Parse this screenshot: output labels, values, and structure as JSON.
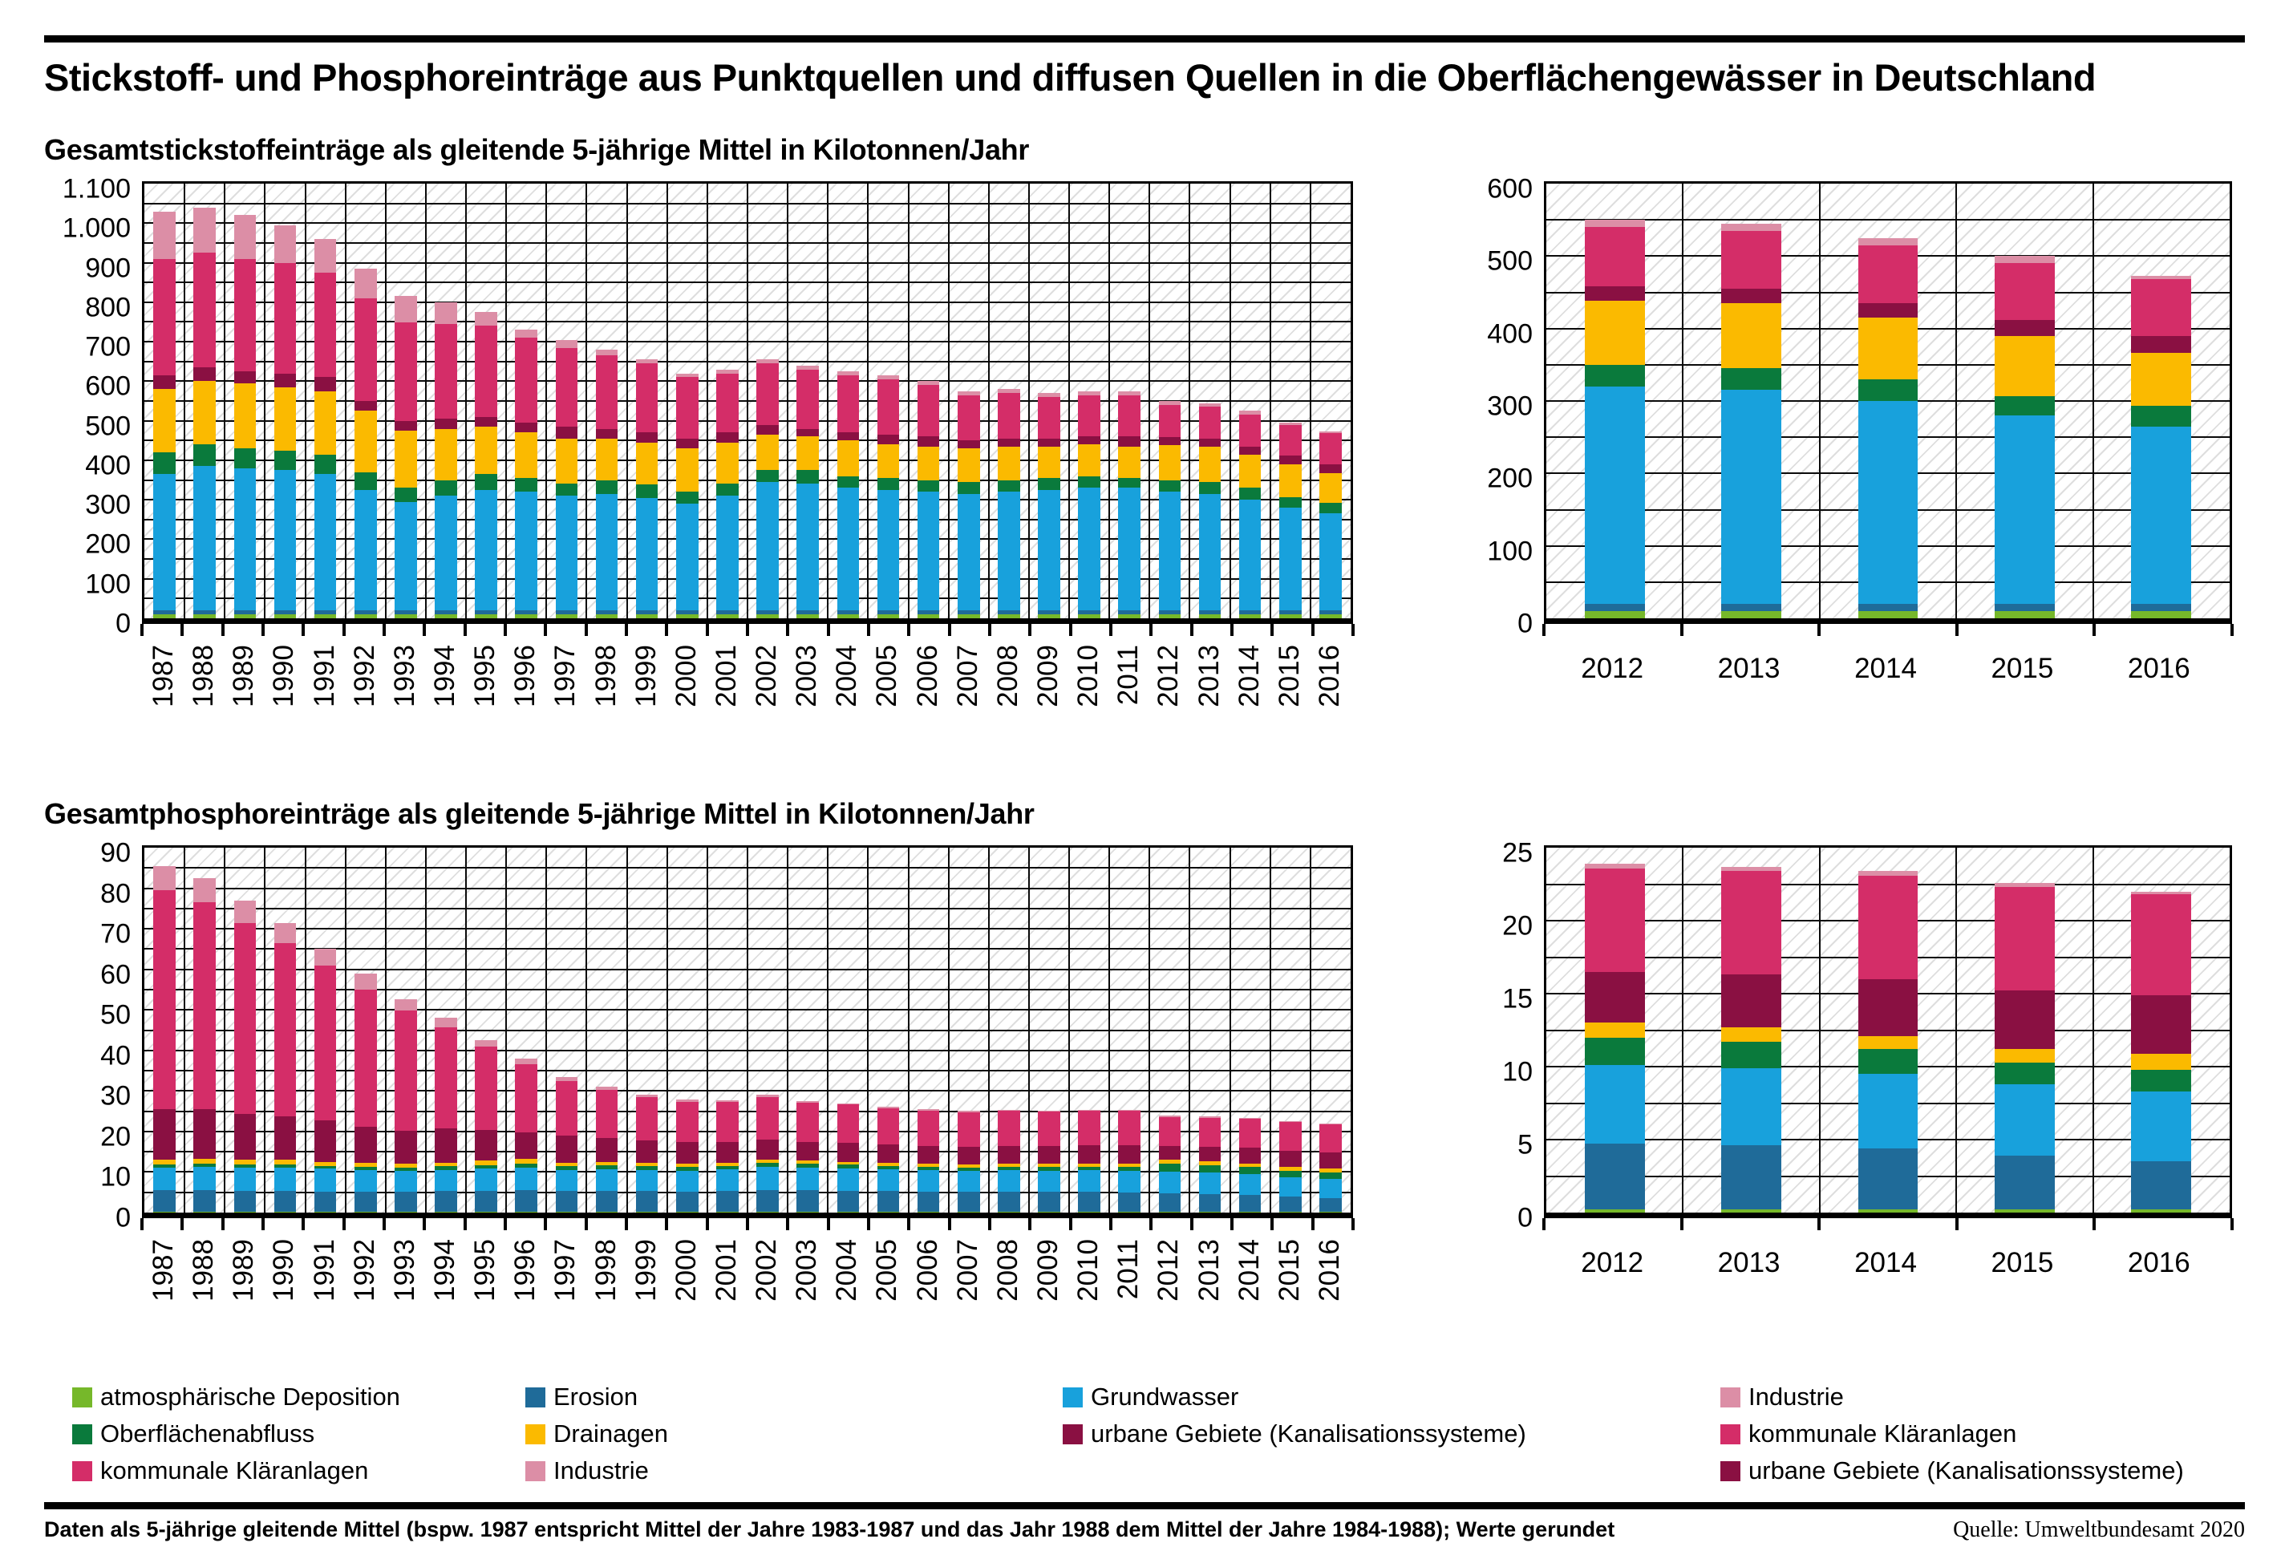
{
  "page": {
    "title": "Stickstoff- und Phosphoreinträge aus Punktquellen und diffusen Quellen in die Oberflächengewässer in Deutschland",
    "section1_title": "Gesamtstickstoffeinträge als gleitende 5-jährige Mittel in Kilotonnen/Jahr",
    "section2_title": "Gesamtphosphoreinträge als gleitende 5-jährige Mittel in Kilotonnen/Jahr",
    "footnote": "Daten als 5-jährige gleitende Mittel (bspw. 1987 entspricht Mittel der Jahre 1983-1987 und das Jahr 1988 dem Mittel der Jahre 1984-1988); Werte gerundet",
    "source": "Quelle: Umweltbundesamt 2020"
  },
  "colors": {
    "atmosphaerische_deposition": "#76b82a",
    "erosion": "#1f6b99",
    "grundwasser": "#18a1dc",
    "oberflaechenabfluss": "#0a7a3c",
    "drainagen": "#fbba00",
    "urbane_gebiete": "#8a1042",
    "kommunale_klaeranlagen": "#d42d68",
    "industrie": "#dc8ea6"
  },
  "legend": {
    "columns": [
      [
        {
          "label": "atmosphärische Deposition",
          "color": "atmosphaerische_deposition"
        },
        {
          "label": "Oberflächenabfluss",
          "color": "oberflaechenabfluss"
        },
        {
          "label": "kommunale Kläranlagen",
          "color": "kommunale_klaeranlagen"
        }
      ],
      [
        {
          "label": "Erosion",
          "color": "erosion"
        },
        {
          "label": "Drainagen",
          "color": "drainagen"
        },
        {
          "label": "Industrie",
          "color": "industrie"
        }
      ],
      [
        {
          "label": "Grundwasser",
          "color": "grundwasser"
        },
        {
          "label": "urbane Gebiete (Kanalisationssysteme)",
          "color": "urbane_gebiete"
        }
      ],
      [
        {
          "label": "Industrie",
          "color": "industrie"
        },
        {
          "label": "kommunale Kläranlagen",
          "color": "kommunale_klaeranlagen"
        },
        {
          "label": "urbane Gebiete (Kanalisationssysteme)",
          "color": "urbane_gebiete"
        }
      ]
    ]
  },
  "chart_data": [
    {
      "id": "nitrogen-main",
      "type": "bar",
      "stacked": true,
      "title": "Gesamtstickstoffeinträge als gleitende 5-jährige Mittel in Kilotonnen/Jahr",
      "ylabel": "Kilotonnen/Jahr",
      "ylim": [
        0,
        1100
      ],
      "ytick_step": 100,
      "minor_step": 50,
      "ytick_labels": [
        "0",
        "100",
        "200",
        "300",
        "400",
        "500",
        "600",
        "700",
        "800",
        "900",
        "1.000",
        "1.100"
      ],
      "rotate_x_labels": true,
      "bar_width_frac": 0.55,
      "categories": [
        "1987",
        "1988",
        "1989",
        "1990",
        "1991",
        "1992",
        "1993",
        "1994",
        "1995",
        "1996",
        "1997",
        "1998",
        "1999",
        "2000",
        "2001",
        "2002",
        "2003",
        "2004",
        "2005",
        "2006",
        "2007",
        "2008",
        "2009",
        "2010",
        "2011",
        "2012",
        "2013",
        "2014",
        "2015",
        "2016"
      ],
      "series": [
        {
          "name": "atmosphärische Deposition",
          "color": "atmosphaerische_deposition",
          "values": [
            10,
            10,
            10,
            10,
            10,
            10,
            10,
            10,
            10,
            10,
            10,
            10,
            10,
            10,
            10,
            10,
            10,
            10,
            10,
            10,
            10,
            10,
            10,
            10,
            10,
            10,
            10,
            10,
            10,
            10
          ]
        },
        {
          "name": "Erosion",
          "color": "erosion",
          "values": [
            10,
            10,
            10,
            10,
            10,
            10,
            10,
            10,
            10,
            10,
            10,
            10,
            10,
            10,
            10,
            10,
            10,
            10,
            10,
            10,
            10,
            10,
            10,
            10,
            10,
            10,
            10,
            10,
            10,
            10
          ]
        },
        {
          "name": "Grundwasser",
          "color": "grundwasser",
          "values": [
            345,
            365,
            360,
            355,
            345,
            305,
            275,
            290,
            305,
            300,
            290,
            295,
            285,
            270,
            290,
            325,
            320,
            310,
            305,
            300,
            295,
            300,
            305,
            310,
            310,
            300,
            295,
            280,
            260,
            245
          ]
        },
        {
          "name": "Oberflächenabfluss",
          "color": "oberflaechenabfluss",
          "values": [
            55,
            55,
            50,
            50,
            50,
            45,
            35,
            40,
            40,
            35,
            30,
            35,
            35,
            30,
            30,
            30,
            35,
            30,
            30,
            30,
            30,
            30,
            30,
            30,
            25,
            30,
            30,
            30,
            27,
            28
          ]
        },
        {
          "name": "Drainagen",
          "color": "drainagen",
          "values": [
            160,
            160,
            165,
            160,
            160,
            155,
            145,
            130,
            120,
            115,
            115,
            105,
            105,
            110,
            105,
            90,
            85,
            90,
            85,
            85,
            85,
            85,
            80,
            80,
            80,
            88,
            90,
            85,
            83,
            74
          ]
        },
        {
          "name": "urbane Gebiete (Kanalisationssysteme)",
          "color": "urbane_gebiete",
          "values": [
            35,
            35,
            30,
            35,
            35,
            25,
            25,
            25,
            25,
            25,
            30,
            25,
            25,
            25,
            25,
            25,
            20,
            20,
            25,
            25,
            20,
            20,
            20,
            20,
            25,
            20,
            20,
            20,
            22,
            23
          ]
        },
        {
          "name": "kommunale Kläranlagen",
          "color": "kommunale_klaeranlagen",
          "values": [
            295,
            290,
            285,
            280,
            265,
            260,
            250,
            240,
            230,
            215,
            200,
            185,
            175,
            155,
            150,
            155,
            150,
            145,
            140,
            130,
            115,
            115,
            105,
            105,
            105,
            82,
            80,
            80,
            78,
            78
          ]
        },
        {
          "name": "Industrie",
          "color": "industrie",
          "values": [
            120,
            115,
            110,
            95,
            85,
            75,
            65,
            55,
            35,
            20,
            20,
            15,
            10,
            10,
            10,
            10,
            10,
            10,
            10,
            10,
            10,
            10,
            10,
            10,
            10,
            10,
            10,
            10,
            5,
            5
          ]
        }
      ]
    },
    {
      "id": "nitrogen-recent",
      "type": "bar",
      "stacked": true,
      "title": "Gesamtstickstoffeinträge 2012-2016 in Kilotonnen/Jahr",
      "ylabel": "Kilotonnen/Jahr",
      "ylim": [
        0,
        600
      ],
      "ytick_step": 100,
      "minor_step": 50,
      "ytick_labels": [
        "0",
        "100",
        "200",
        "300",
        "400",
        "500",
        "600"
      ],
      "rotate_x_labels": false,
      "bar_width_frac": 0.44,
      "categories": [
        "2012",
        "2013",
        "2014",
        "2015",
        "2016"
      ],
      "series": [
        {
          "name": "atmosphärische Deposition",
          "color": "atmosphaerische_deposition",
          "values": [
            10,
            10,
            10,
            10,
            10
          ]
        },
        {
          "name": "Erosion",
          "color": "erosion",
          "values": [
            10,
            10,
            10,
            10,
            10
          ]
        },
        {
          "name": "Grundwasser",
          "color": "grundwasser",
          "values": [
            300,
            295,
            280,
            260,
            245
          ]
        },
        {
          "name": "Oberflächenabfluss",
          "color": "oberflaechenabfluss",
          "values": [
            30,
            30,
            30,
            27,
            28
          ]
        },
        {
          "name": "Drainagen",
          "color": "drainagen",
          "values": [
            88,
            90,
            85,
            83,
            74
          ]
        },
        {
          "name": "urbane Gebiete (Kanalisationssysteme)",
          "color": "urbane_gebiete",
          "values": [
            20,
            20,
            20,
            22,
            23
          ]
        },
        {
          "name": "kommunale Kläranlagen",
          "color": "kommunale_klaeranlagen",
          "values": [
            82,
            80,
            80,
            78,
            78
          ]
        },
        {
          "name": "Industrie",
          "color": "industrie",
          "values": [
            10,
            10,
            10,
            10,
            5
          ]
        }
      ]
    },
    {
      "id": "phosphorus-main",
      "type": "bar",
      "stacked": true,
      "title": "Gesamtphosphoreinträge als gleitende 5-jährige Mittel in Kilotonnen/Jahr",
      "ylabel": "Kilotonnen/Jahr",
      "ylim": [
        0,
        90
      ],
      "ytick_step": 10,
      "minor_step": 5,
      "ytick_labels": [
        "0",
        "10",
        "20",
        "30",
        "40",
        "50",
        "60",
        "70",
        "80",
        "90"
      ],
      "rotate_x_labels": true,
      "bar_width_frac": 0.55,
      "categories": [
        "1987",
        "1988",
        "1989",
        "1990",
        "1991",
        "1992",
        "1993",
        "1994",
        "1995",
        "1996",
        "1997",
        "1998",
        "1999",
        "2000",
        "2001",
        "2002",
        "2003",
        "2004",
        "2005",
        "2006",
        "2007",
        "2008",
        "2009",
        "2010",
        "2011",
        "2012",
        "2013",
        "2014",
        "2015",
        "2016"
      ],
      "series": [
        {
          "name": "atmosphärische Deposition",
          "color": "atmosphaerische_deposition",
          "values": [
            0.2,
            0.2,
            0.2,
            0.2,
            0.2,
            0.2,
            0.2,
            0.2,
            0.2,
            0.2,
            0.2,
            0.2,
            0.2,
            0.2,
            0.2,
            0.2,
            0.2,
            0.2,
            0.2,
            0.2,
            0.2,
            0.2,
            0.2,
            0.2,
            0.2,
            0.2,
            0.2,
            0.2,
            0.2,
            0.2
          ]
        },
        {
          "name": "Erosion",
          "color": "erosion",
          "values": [
            5.3,
            5.3,
            5.1,
            5.1,
            5.0,
            5.0,
            5.0,
            5.1,
            5.2,
            5.3,
            5.1,
            5.2,
            5.1,
            5.0,
            5.1,
            5.4,
            5.3,
            5.2,
            5.1,
            5.0,
            4.9,
            5.0,
            4.9,
            4.9,
            4.8,
            4.5,
            4.4,
            4.2,
            3.7,
            3.3
          ]
        },
        {
          "name": "Grundwasser",
          "color": "grundwasser",
          "values": [
            5.5,
            5.7,
            5.7,
            5.7,
            5.6,
            5.3,
            5.0,
            5.2,
            5.4,
            5.5,
            5.2,
            5.3,
            5.2,
            5.0,
            5.3,
            5.6,
            5.5,
            5.4,
            5.3,
            5.2,
            5.1,
            5.2,
            5.2,
            5.3,
            5.3,
            5.4,
            5.3,
            5.1,
            4.9,
            4.8
          ]
        },
        {
          "name": "Oberflächenabfluss",
          "color": "oberflaechenabfluss",
          "values": [
            0.8,
            0.8,
            0.8,
            0.8,
            0.7,
            0.7,
            0.8,
            1.0,
            0.8,
            1.0,
            0.9,
            0.9,
            0.9,
            1.0,
            0.9,
            1.0,
            1.0,
            1.0,
            0.9,
            0.8,
            0.8,
            0.9,
            0.9,
            0.9,
            0.9,
            1.9,
            1.8,
            1.7,
            1.5,
            1.5
          ]
        },
        {
          "name": "Drainagen",
          "color": "drainagen",
          "values": [
            1.2,
            1.2,
            1.2,
            1.2,
            1.0,
            1.0,
            1.0,
            0.7,
            1.2,
            1.2,
            0.9,
            0.9,
            0.8,
            0.8,
            0.8,
            0.8,
            0.8,
            0.7,
            0.7,
            0.8,
            0.8,
            0.7,
            0.8,
            0.8,
            0.8,
            1.0,
            1.0,
            0.9,
            0.9,
            1.1
          ]
        },
        {
          "name": "urbane Gebiete (Kanalisationssysteme)",
          "color": "urbane_gebiete",
          "values": [
            12.5,
            12.3,
            11.3,
            10.8,
            10.3,
            9.0,
            8.2,
            8.6,
            7.5,
            6.6,
            6.6,
            6.0,
            5.6,
            5.4,
            5.2,
            5.0,
            4.7,
            4.7,
            4.6,
            4.5,
            4.4,
            4.5,
            4.4,
            4.5,
            4.6,
            3.5,
            3.6,
            3.9,
            4.0,
            4.0
          ]
        },
        {
          "name": "kommunale Kläranlagen",
          "color": "kommunale_klaeranlagen",
          "values": [
            54.0,
            51.0,
            47.2,
            42.7,
            38.2,
            33.8,
            29.6,
            25.0,
            20.7,
            16.8,
            13.5,
            11.7,
            10.6,
            10.0,
            9.8,
            10.5,
            9.7,
            9.5,
            9.0,
            8.7,
            8.6,
            8.6,
            8.6,
            8.5,
            8.5,
            7.1,
            7.1,
            7.1,
            7.1,
            6.9
          ]
        },
        {
          "name": "Industrie",
          "color": "industrie",
          "values": [
            6.0,
            6.0,
            5.5,
            5.0,
            4.0,
            4.0,
            2.9,
            2.2,
            1.5,
            1.4,
            1.1,
            0.8,
            0.6,
            0.5,
            0.5,
            0.5,
            0.4,
            0.3,
            0.3,
            0.3,
            0.3,
            0.3,
            0.2,
            0.3,
            0.2,
            0.3,
            0.3,
            0.3,
            0.3,
            0.2
          ]
        }
      ]
    },
    {
      "id": "phosphorus-recent",
      "type": "bar",
      "stacked": true,
      "title": "Gesamtphosphoreinträge 2012-2016 in Kilotonnen/Jahr",
      "ylabel": "Kilotonnen/Jahr",
      "ylim": [
        0,
        25
      ],
      "ytick_step": 5,
      "minor_step": 2.5,
      "ytick_labels": [
        "0",
        "5",
        "10",
        "15",
        "20",
        "25"
      ],
      "rotate_x_labels": false,
      "bar_width_frac": 0.44,
      "categories": [
        "2012",
        "2013",
        "2014",
        "2015",
        "2016"
      ],
      "series": [
        {
          "name": "atmosphärische Deposition",
          "color": "atmosphaerische_deposition",
          "values": [
            0.2,
            0.2,
            0.2,
            0.2,
            0.2
          ]
        },
        {
          "name": "Erosion",
          "color": "erosion",
          "values": [
            4.5,
            4.4,
            4.2,
            3.7,
            3.3
          ]
        },
        {
          "name": "Grundwasser",
          "color": "grundwasser",
          "values": [
            5.4,
            5.3,
            5.1,
            4.9,
            4.8
          ]
        },
        {
          "name": "Oberflächenabfluss",
          "color": "oberflaechenabfluss",
          "values": [
            1.9,
            1.8,
            1.7,
            1.5,
            1.5
          ]
        },
        {
          "name": "Drainagen",
          "color": "drainagen",
          "values": [
            1.0,
            1.0,
            0.9,
            0.9,
            1.1
          ]
        },
        {
          "name": "urbane Gebiete (Kanalisationssysteme)",
          "color": "urbane_gebiete",
          "values": [
            3.5,
            3.6,
            3.9,
            4.0,
            4.0
          ]
        },
        {
          "name": "kommunale Kläranlagen",
          "color": "kommunale_klaeranlagen",
          "values": [
            7.1,
            7.1,
            7.1,
            7.1,
            6.9
          ]
        },
        {
          "name": "Industrie",
          "color": "industrie",
          "values": [
            0.3,
            0.3,
            0.3,
            0.3,
            0.2
          ]
        }
      ]
    }
  ]
}
